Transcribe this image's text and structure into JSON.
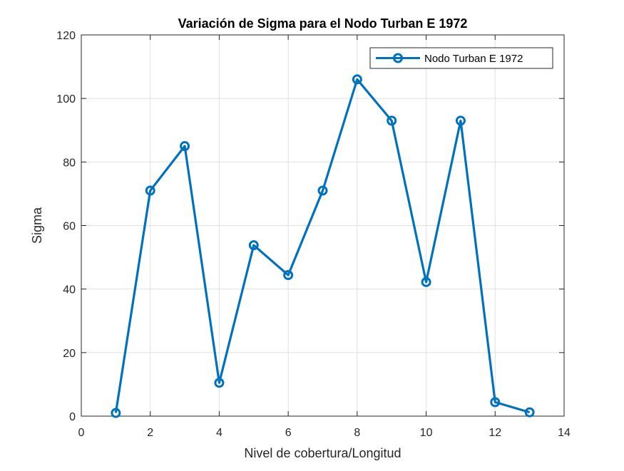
{
  "chart_data": {
    "type": "line",
    "title": "Variación de Sigma para el Nodo Turban E 1972",
    "xlabel": "Nivel de cobertura/Longitud",
    "ylabel": "Sigma",
    "xlim": [
      0,
      14
    ],
    "ylim": [
      0,
      120
    ],
    "xticks": [
      0,
      2,
      4,
      6,
      8,
      10,
      12,
      14
    ],
    "yticks": [
      0,
      20,
      40,
      60,
      80,
      100,
      120
    ],
    "grid": true,
    "legend_position": "top-right",
    "series": [
      {
        "name": "Nodo Turban E 1972",
        "color": "#0072BD",
        "marker": "circle",
        "x": [
          1,
          2,
          3,
          4,
          5,
          6,
          7,
          8,
          9,
          10,
          11,
          12,
          13
        ],
        "y": [
          1,
          71,
          85,
          10.5,
          53.8,
          44.4,
          71,
          106,
          93,
          42.2,
          93,
          4.4,
          1.2
        ]
      }
    ]
  }
}
